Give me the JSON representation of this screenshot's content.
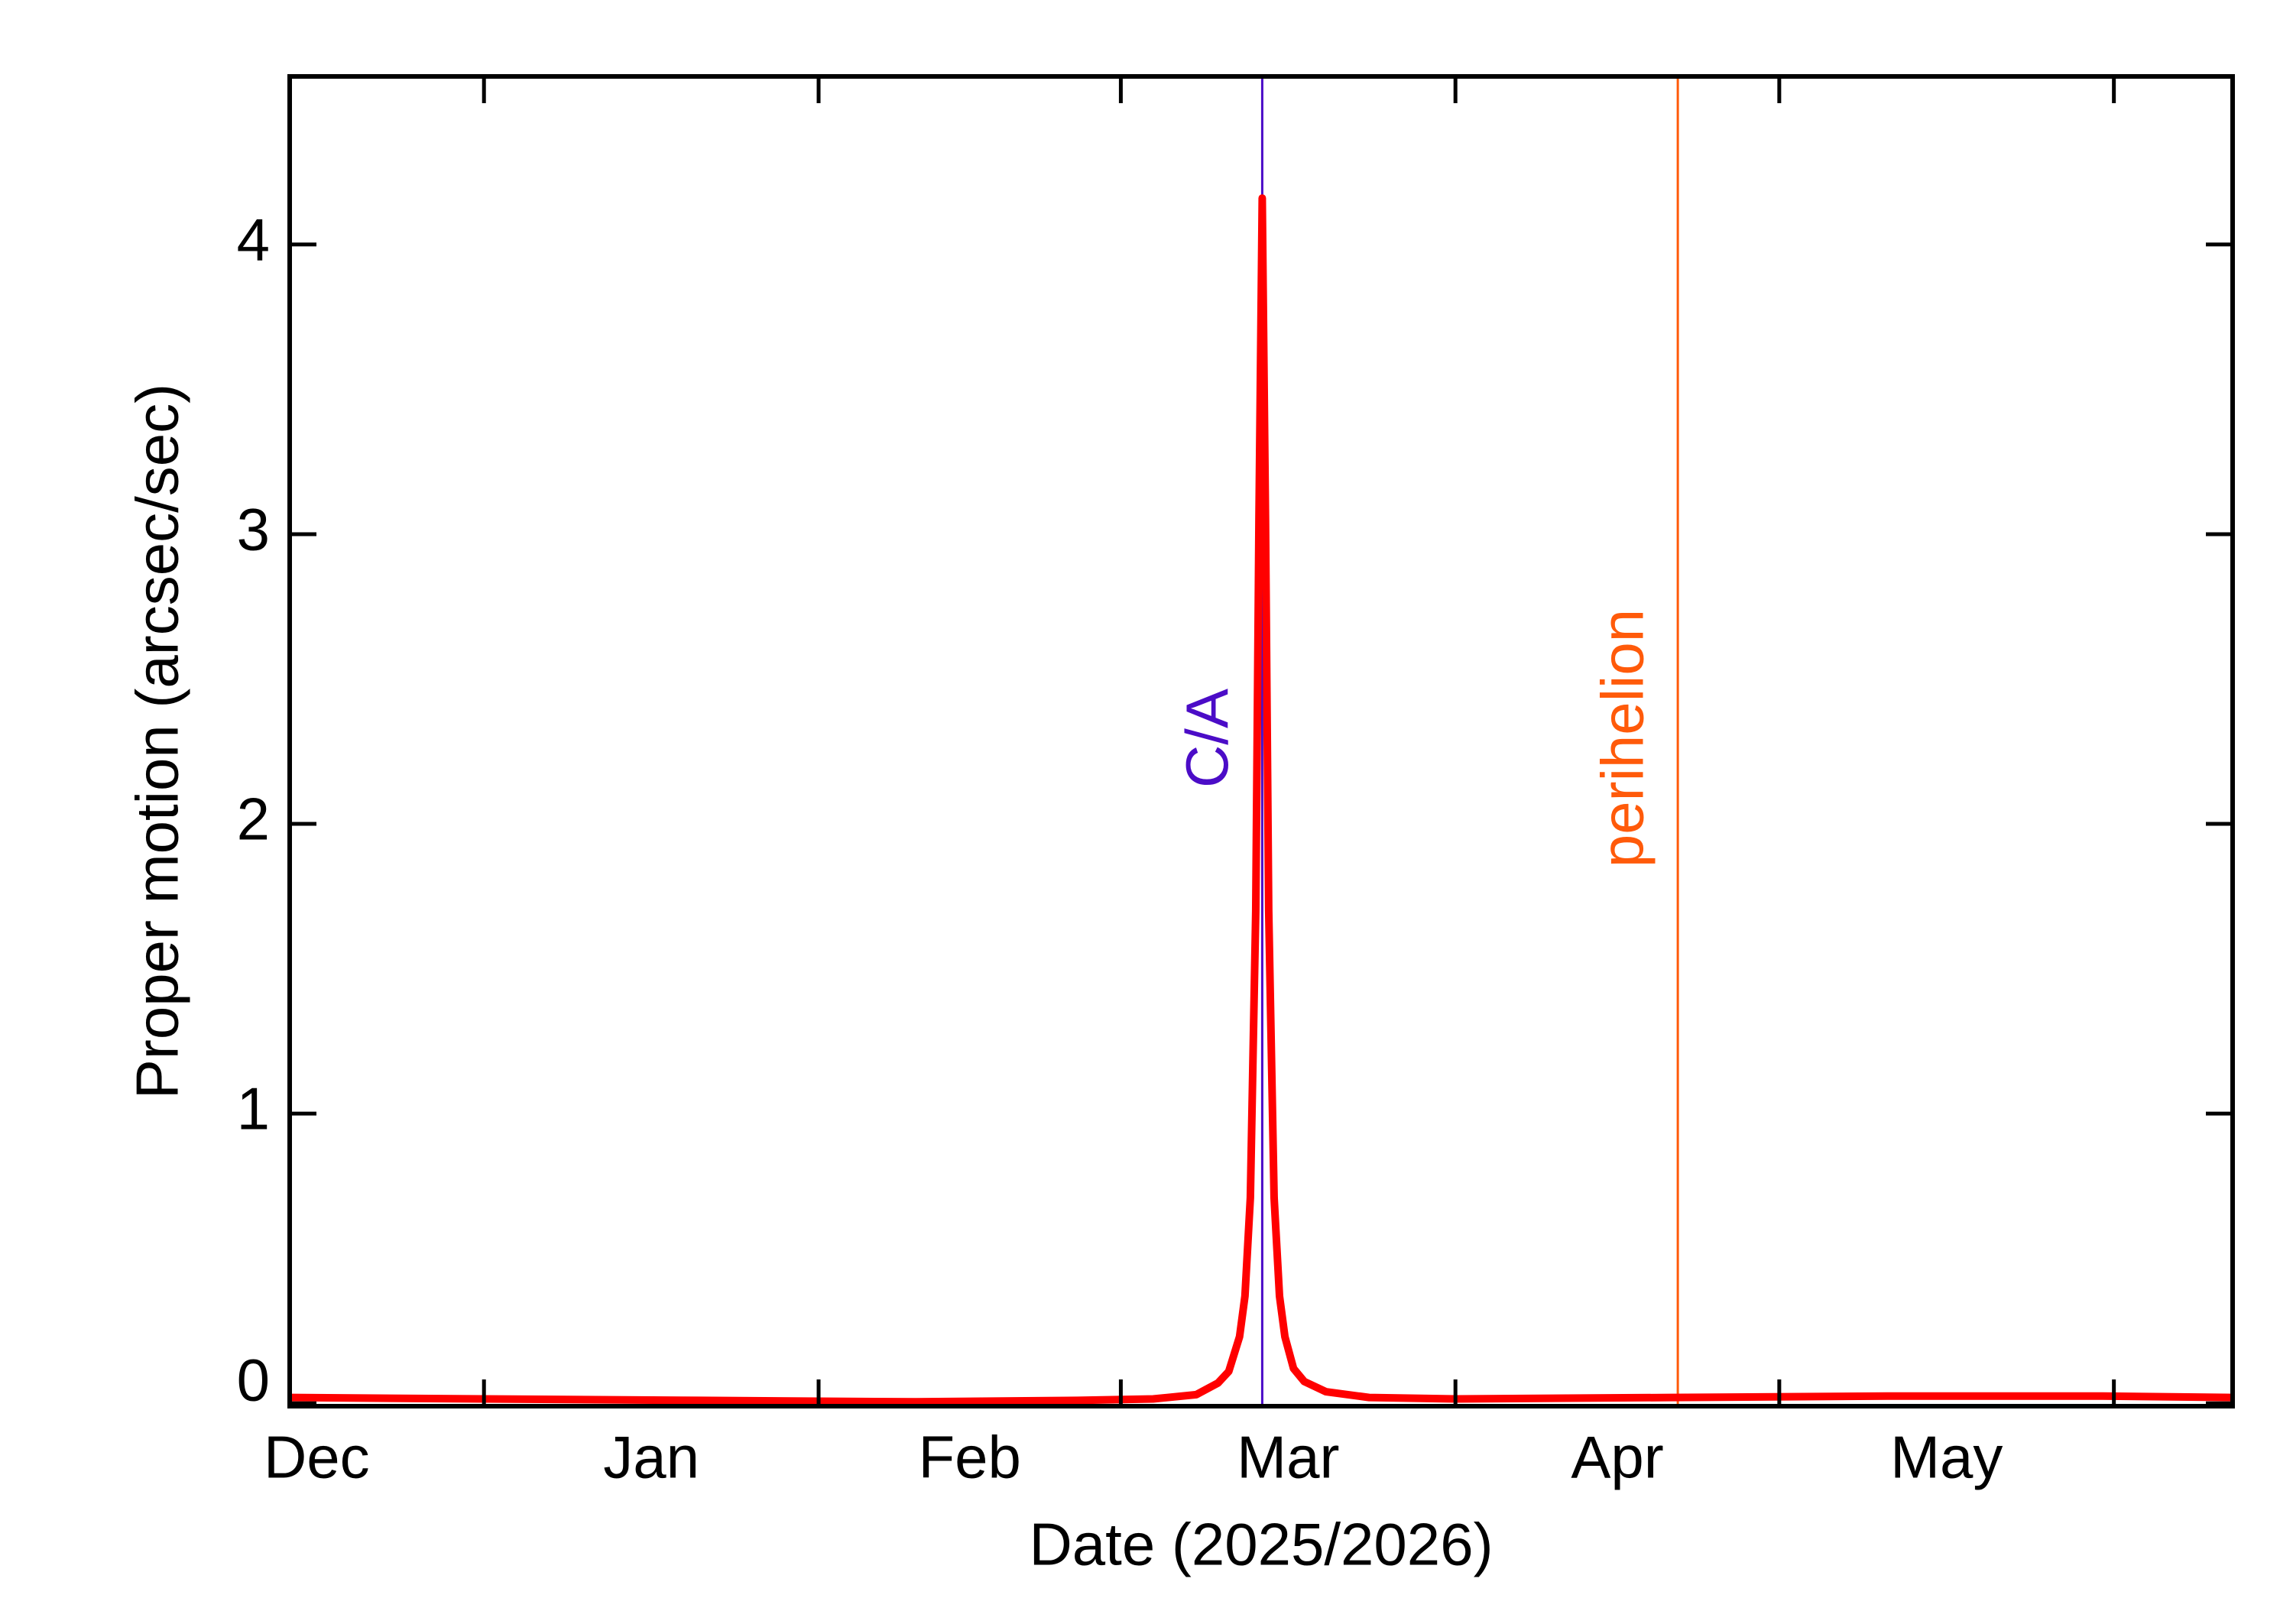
{
  "chart_data": {
    "type": "line",
    "x_label": "Date (2025/2026)",
    "y_label": "Proper motion (arcsec/sec)",
    "x": [
      -18,
      0,
      20,
      40,
      55,
      62,
      66,
      68,
      69,
      70,
      70.5,
      71,
      71.5,
      71.8,
      72.1,
      72.4,
      72.7,
      73.2,
      73.7,
      74.2,
      75,
      76,
      78,
      82,
      90,
      110,
      130,
      150,
      162
    ],
    "series": [
      {
        "color": "#ff0000",
        "values": [
          0.02,
          0.015,
          0.01,
          0.005,
          0.01,
          0.015,
          0.03,
          0.07,
          0.11,
          0.23,
          0.37,
          0.71,
          1.7,
          3.06,
          4.16,
          3.06,
          1.7,
          0.71,
          0.37,
          0.23,
          0.12,
          0.075,
          0.04,
          0.02,
          0.015,
          0.02,
          0.025,
          0.025,
          0.02
        ]
      }
    ],
    "xlim": [
      -18,
      162
    ],
    "xticks": [
      {
        "value": -15.5,
        "label": "Dec"
      },
      {
        "value": 15.5,
        "label": "Jan"
      },
      {
        "value": 45,
        "label": "Feb"
      },
      {
        "value": 74.5,
        "label": "Mar"
      },
      {
        "value": 105,
        "label": "Apr"
      },
      {
        "value": 135.5,
        "label": "May"
      }
    ],
    "xtick_marks": [
      0,
      31,
      59,
      90,
      120,
      151
    ],
    "ylim": [
      -0.01,
      4.58
    ],
    "yticks": [
      0,
      1,
      2,
      3,
      4
    ],
    "annotations": [
      {
        "label": "C/A",
        "x": 72.1,
        "color": "#4b0cc7"
      },
      {
        "label": "perihelion",
        "x": 110.6,
        "color": "#ff5a0a"
      }
    ]
  }
}
